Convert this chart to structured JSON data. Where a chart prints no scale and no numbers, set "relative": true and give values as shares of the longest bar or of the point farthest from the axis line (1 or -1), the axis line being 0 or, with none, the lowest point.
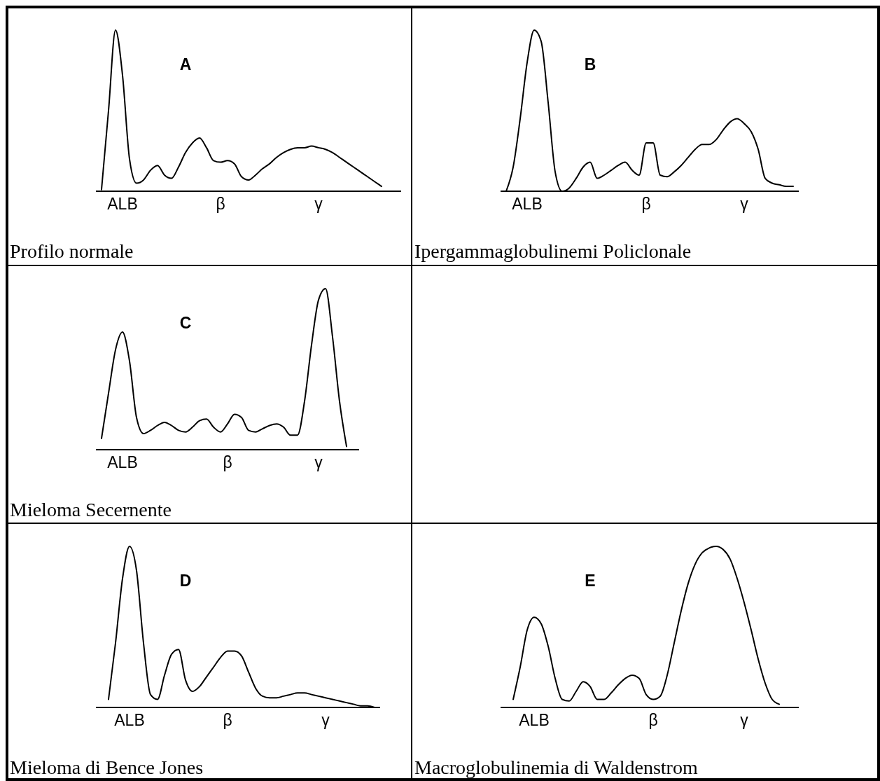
{
  "chart_data": [
    {
      "type": "line",
      "relative": true,
      "title": "Profilo normale",
      "annotations": [
        "A"
      ],
      "color": "#000000",
      "categories": [
        null,
        null,
        null,
        "ALB",
        null,
        null,
        null,
        null,
        null,
        null,
        null,
        null,
        null,
        null,
        null,
        null,
        null,
        "β",
        null,
        null,
        null,
        null,
        null,
        null,
        null,
        null,
        null,
        null,
        null,
        null,
        null,
        "γ",
        null,
        null,
        null,
        null,
        null,
        null,
        null,
        null,
        null,
        null,
        null
      ],
      "values": [
        0.01,
        0.5,
        1.0,
        0.72,
        0.2,
        0.05,
        0.07,
        0.13,
        0.16,
        0.1,
        0.08,
        0.15,
        0.24,
        0.3,
        0.33,
        0.27,
        0.19,
        0.18,
        0.19,
        0.17,
        0.09,
        0.07,
        0.1,
        0.14,
        0.17,
        0.21,
        0.24,
        0.26,
        0.27,
        0.27,
        0.28,
        0.27,
        0.26,
        0.24,
        0.21,
        0.18,
        0.15,
        0.12,
        0.09,
        0.06,
        0.03,
        null,
        null
      ]
    },
    {
      "type": "line",
      "relative": true,
      "title": "Ipergammaglobulinemi Policlonale",
      "annotations": [
        "B"
      ],
      "color": "#000000",
      "categories": [
        null,
        null,
        null,
        "ALB",
        null,
        null,
        null,
        null,
        null,
        null,
        null,
        null,
        null,
        null,
        null,
        null,
        null,
        null,
        null,
        null,
        "β",
        null,
        null,
        null,
        null,
        null,
        null,
        null,
        null,
        null,
        null,
        null,
        null,
        null,
        "γ",
        null,
        null,
        null,
        null,
        null,
        null,
        null
      ],
      "values": [
        0.0,
        0.15,
        0.45,
        0.8,
        1.0,
        0.93,
        0.55,
        0.12,
        0.0,
        0.02,
        0.08,
        0.15,
        0.18,
        0.08,
        0.1,
        0.13,
        0.16,
        0.18,
        0.13,
        0.1,
        0.3,
        0.3,
        0.1,
        0.09,
        0.12,
        0.16,
        0.21,
        0.26,
        0.29,
        0.29,
        0.32,
        0.38,
        0.43,
        0.45,
        0.42,
        0.37,
        0.26,
        0.08,
        0.05,
        0.04,
        0.03,
        0.03
      ]
    },
    {
      "type": "line",
      "relative": true,
      "title": "Mieloma Secernente",
      "annotations": [
        "C"
      ],
      "color": "#000000",
      "categories": [
        null,
        null,
        null,
        "ALB",
        null,
        null,
        null,
        null,
        null,
        null,
        null,
        null,
        null,
        null,
        null,
        null,
        null,
        null,
        "β",
        null,
        null,
        null,
        null,
        null,
        null,
        null,
        null,
        null,
        null,
        null,
        null,
        "γ",
        null,
        null,
        null,
        null,
        null
      ],
      "values": [
        0.07,
        0.35,
        0.62,
        0.73,
        0.55,
        0.2,
        0.1,
        0.12,
        0.15,
        0.17,
        0.15,
        0.12,
        0.11,
        0.14,
        0.18,
        0.19,
        0.14,
        0.11,
        0.16,
        0.22,
        0.2,
        0.12,
        0.11,
        0.13,
        0.15,
        0.16,
        0.14,
        0.09,
        0.09,
        0.3,
        0.65,
        0.93,
        1.0,
        0.7,
        0.3,
        0.02,
        null
      ]
    },
    {
      "type": "line",
      "relative": true,
      "title": "Mieloma di Bence Jones",
      "annotations": [
        "D"
      ],
      "color": "#000000",
      "categories": [
        null,
        null,
        null,
        null,
        "ALB",
        null,
        null,
        null,
        null,
        null,
        null,
        null,
        null,
        null,
        null,
        null,
        null,
        null,
        "β",
        null,
        null,
        null,
        null,
        null,
        null,
        null,
        null,
        null,
        null,
        null,
        null,
        null,
        "γ",
        null,
        null,
        null,
        null,
        null,
        null,
        null
      ],
      "values": [
        null,
        0.05,
        0.4,
        0.8,
        1.0,
        0.85,
        0.4,
        0.08,
        0.05,
        0.2,
        0.33,
        0.36,
        0.17,
        0.1,
        0.13,
        0.19,
        0.25,
        0.31,
        0.35,
        0.35,
        0.32,
        0.22,
        0.12,
        0.07,
        0.06,
        0.06,
        0.07,
        0.08,
        0.09,
        0.09,
        0.08,
        0.07,
        0.06,
        0.05,
        0.04,
        0.03,
        0.02,
        0.01,
        0.01,
        0.0
      ]
    },
    {
      "type": "line",
      "relative": true,
      "title": "Macroglobulinemia di Waldenstrom",
      "annotations": [
        "E"
      ],
      "color": "#000000",
      "categories": [
        null,
        null,
        null,
        null,
        "ALB",
        null,
        null,
        null,
        null,
        null,
        null,
        null,
        null,
        null,
        null,
        null,
        null,
        null,
        null,
        null,
        null,
        "β",
        null,
        null,
        null,
        null,
        null,
        null,
        null,
        null,
        null,
        null,
        null,
        null,
        "γ",
        null,
        null,
        null,
        null,
        null,
        null,
        null
      ],
      "values": [
        null,
        0.05,
        0.25,
        0.48,
        0.56,
        0.52,
        0.38,
        0.18,
        0.05,
        0.04,
        0.1,
        0.16,
        0.13,
        0.05,
        0.05,
        0.09,
        0.14,
        0.18,
        0.2,
        0.18,
        0.08,
        0.05,
        0.07,
        0.2,
        0.4,
        0.6,
        0.77,
        0.89,
        0.96,
        0.99,
        1.0,
        0.98,
        0.92,
        0.8,
        0.65,
        0.48,
        0.3,
        0.15,
        0.05,
        0.02,
        null,
        null
      ]
    }
  ]
}
